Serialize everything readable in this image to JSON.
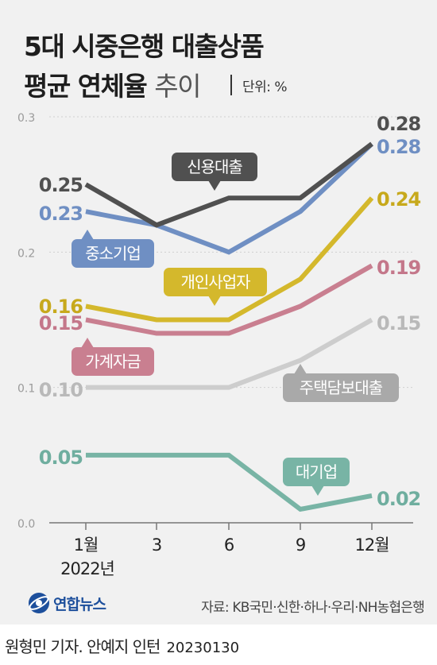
{
  "title": {
    "line1": "5대 시중은행 대출상품",
    "line2_bold": "평균 연체율",
    "line2_light": "추이",
    "unit": "단위: %"
  },
  "chart_data": {
    "type": "line",
    "categories": [
      "1월",
      "3",
      "6",
      "9",
      "12월"
    ],
    "x_sublabel": "2022년",
    "ylim": [
      0,
      0.3
    ],
    "yticks": [
      "0.0",
      "0.1",
      "0.2",
      "0.3"
    ],
    "grid": true,
    "series": [
      {
        "name": "신용대출",
        "values": [
          0.25,
          0.22,
          0.24,
          0.24,
          0.28
        ],
        "color": "#505050",
        "start_label": "0.25",
        "end_label": "0.28"
      },
      {
        "name": "중소기업",
        "values": [
          0.23,
          0.22,
          0.2,
          0.23,
          0.28
        ],
        "color": "#6f8fc3",
        "start_label": "0.23",
        "end_label": "0.28"
      },
      {
        "name": "개인사업자",
        "values": [
          0.16,
          0.15,
          0.15,
          0.18,
          0.24
        ],
        "color": "#d4b82c",
        "start_label": "0.16",
        "end_label": "0.24"
      },
      {
        "name": "가계자금",
        "values": [
          0.15,
          0.14,
          0.14,
          0.16,
          0.19
        ],
        "color": "#c97f90",
        "start_label": "0.15",
        "end_label": "0.19"
      },
      {
        "name": "주택담보대출",
        "values": [
          0.1,
          0.1,
          0.1,
          0.12,
          0.15
        ],
        "color": "#cdcdcd",
        "start_label": "0.10",
        "end_label": "0.15"
      },
      {
        "name": "대기업",
        "values": [
          0.05,
          0.05,
          0.05,
          0.01,
          0.02
        ],
        "color": "#78b4a5",
        "start_label": "0.05",
        "end_label": "0.02"
      }
    ]
  },
  "footer": {
    "logo_text": "연합뉴스",
    "source": "자료: KB국민·신한·하나·우리·NH농협은행",
    "credit": "원형민 기자. 안예지 인턴",
    "date": "20230130"
  }
}
